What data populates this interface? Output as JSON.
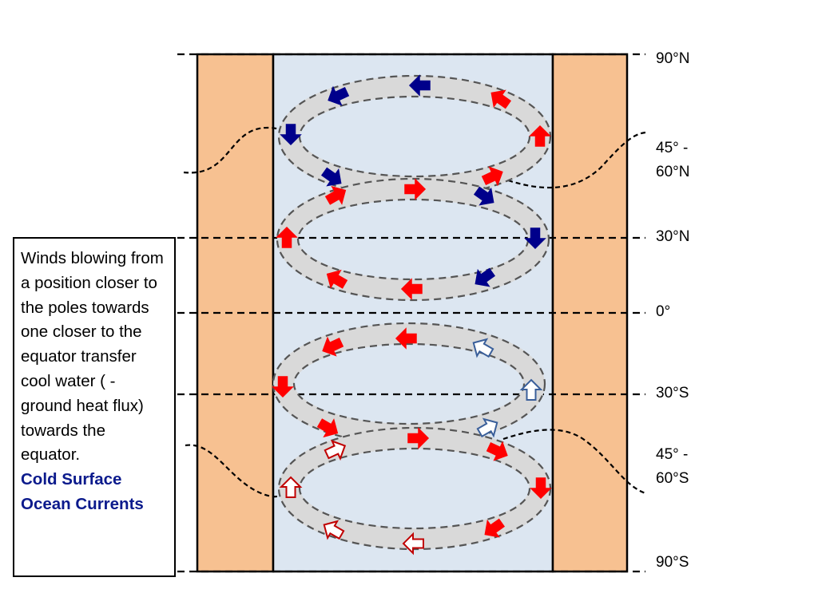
{
  "latitude_labels": {
    "n90": "90°N",
    "n45_line1": "45° -",
    "n45_line2": "60°N",
    "n30": "30°N",
    "eq": "0°",
    "s30": "30°S",
    "s45_line1": "45° -",
    "s45_line2": "60°S",
    "s90": "90°S"
  },
  "textbox": {
    "body": "Winds blowing from a position closer to the poles towards one closer to the equator transfer cool water ( - ground heat flux) towards the equator.",
    "highlight": "Cold Surface Ocean Currents"
  },
  "colors": {
    "continent": "#f7c191",
    "ocean": "#dce6f1",
    "gyre_band": "#d9d9d9",
    "warm_arrow": "#ff0000",
    "cold_arrow": "#00008b",
    "cold_outline_arrow": "#3a5f9a",
    "warm_outline_arrow": "#c00000"
  }
}
